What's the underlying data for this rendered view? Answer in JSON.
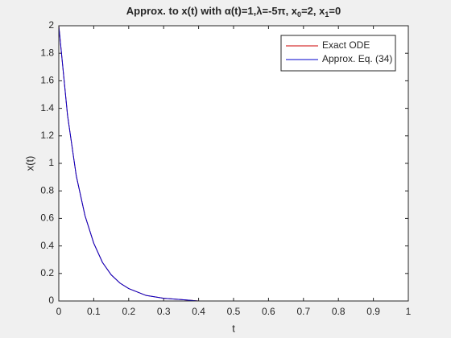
{
  "chart_data": {
    "type": "line",
    "title": [
      "Approx. to x(t) with α(t)=1,λ=-5π, x",
      "0",
      "=2, x",
      "1",
      "=0"
    ],
    "xlabel": "t",
    "ylabel": "x(t)",
    "x": [
      0,
      0.025,
      0.05,
      0.075,
      0.1,
      0.125,
      0.15,
      0.175,
      0.2,
      0.25,
      0.3,
      0.35,
      0.4,
      0.5,
      0.6,
      0.7,
      0.8,
      0.9,
      1
    ],
    "series": [
      {
        "name": "Exact ODE",
        "color": "#cc0000",
        "values": [
          2,
          1.35,
          0.91,
          0.62,
          0.42,
          0.28,
          0.19,
          0.13,
          0.09,
          0.04,
          0.02,
          0.01,
          0,
          0,
          0,
          0,
          0,
          0,
          0
        ]
      },
      {
        "name": "Approx. Eq. (34)",
        "color": "#0000cc",
        "values": [
          2,
          1.35,
          0.91,
          0.62,
          0.42,
          0.28,
          0.19,
          0.13,
          0.09,
          0.04,
          0.02,
          0.01,
          0,
          0,
          0,
          0,
          0,
          0,
          0
        ]
      }
    ],
    "xlim": [
      0,
      1
    ],
    "ylim": [
      0,
      2
    ],
    "xticks": [
      0,
      0.1,
      0.2,
      0.3,
      0.4,
      0.5,
      0.6,
      0.7,
      0.8,
      0.9,
      1
    ],
    "yticks": [
      0,
      0.2,
      0.4,
      0.6,
      0.8,
      1,
      1.2,
      1.4,
      1.6,
      1.8,
      2
    ],
    "grid": false,
    "legend": "northeast"
  }
}
